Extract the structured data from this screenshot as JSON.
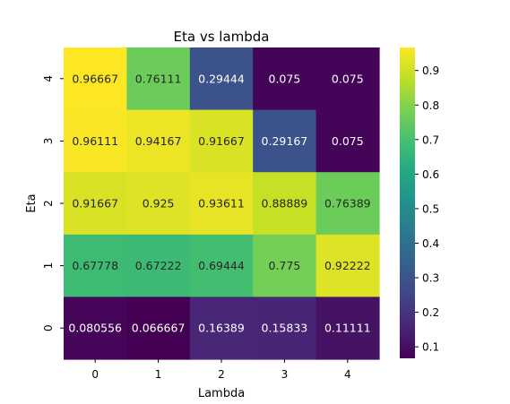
{
  "chart_data": {
    "type": "heatmap",
    "title": "Eta vs lambda",
    "xlabel": "Lambda",
    "ylabel": "Eta",
    "x_categories": [
      "0",
      "1",
      "2",
      "3",
      "4"
    ],
    "y_categories": [
      "0",
      "1",
      "2",
      "3",
      "4"
    ],
    "y_order": "bottom-to-top",
    "colormap": "viridis",
    "value_range": [
      0.066667,
      0.96667
    ],
    "colorbar_ticks": [
      0.1,
      0.2,
      0.3,
      0.4,
      0.5,
      0.6,
      0.7,
      0.8,
      0.9
    ],
    "colorbar_tick_labels": [
      "0.1",
      "0.2",
      "0.3",
      "0.4",
      "0.5",
      "0.6",
      "0.7",
      "0.8",
      "0.9"
    ],
    "rows": [
      {
        "eta": "4",
        "values": [
          0.96667,
          0.76111,
          0.29444,
          0.075,
          0.075
        ],
        "labels": [
          "0.96667",
          "0.76111",
          "0.29444",
          "0.075",
          "0.075"
        ]
      },
      {
        "eta": "3",
        "values": [
          0.96111,
          0.94167,
          0.91667,
          0.29167,
          0.075
        ],
        "labels": [
          "0.96111",
          "0.94167",
          "0.91667",
          "0.29167",
          "0.075"
        ]
      },
      {
        "eta": "2",
        "values": [
          0.91667,
          0.925,
          0.93611,
          0.88889,
          0.76389
        ],
        "labels": [
          "0.91667",
          "0.925",
          "0.93611",
          "0.88889",
          "0.76389"
        ]
      },
      {
        "eta": "1",
        "values": [
          0.67778,
          0.67222,
          0.69444,
          0.775,
          0.92222
        ],
        "labels": [
          "0.67778",
          "0.67222",
          "0.69444",
          "0.775",
          "0.92222"
        ]
      },
      {
        "eta": "0",
        "values": [
          0.080556,
          0.066667,
          0.16389,
          0.15833,
          0.11111
        ],
        "labels": [
          "0.080556",
          "0.066667",
          "0.16389",
          "0.15833",
          "0.11111"
        ]
      }
    ]
  }
}
